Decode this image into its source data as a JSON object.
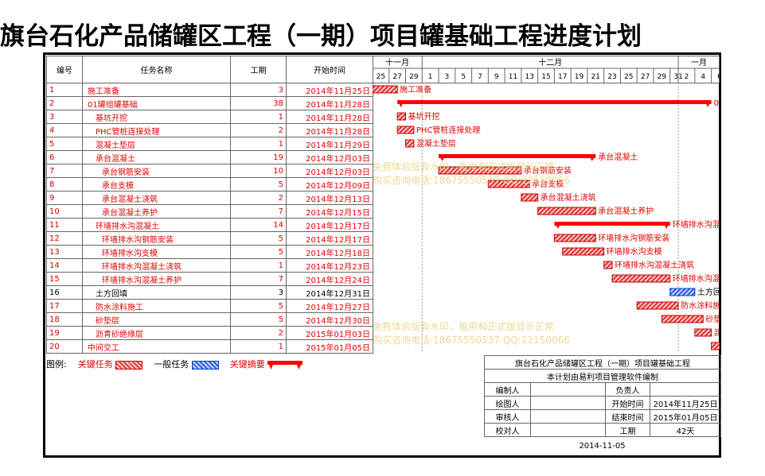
{
  "title": "旗台石化产品储罐区工程（一期）项目罐基础工程进度计划",
  "table": {
    "headers": {
      "id": "编号",
      "name": "任务名称",
      "duration": "工期",
      "start": "开始时间"
    },
    "rows": [
      {
        "id": "1",
        "name": "施工准备",
        "indent": 0,
        "duration": "3",
        "start": "2014年11月25日",
        "s": 0,
        "d": 3,
        "type": "critical",
        "label": "施工准备"
      },
      {
        "id": "2",
        "name": "01罐组罐基础",
        "indent": 0,
        "duration": "38",
        "start": "2014年11月28日",
        "s": 3,
        "d": 38,
        "type": "summary",
        "label": "01罐组罐基础"
      },
      {
        "id": "3",
        "name": "基坑开挖",
        "indent": 1,
        "duration": "1",
        "start": "2014年11月28日",
        "s": 3,
        "d": 1,
        "type": "critical",
        "label": "基坑开挖"
      },
      {
        "id": "4",
        "name": "PHC管桩连接处理",
        "indent": 1,
        "duration": "2",
        "start": "2014年11月28日",
        "s": 3,
        "d": 2,
        "type": "critical",
        "label": "PHC管桩连接处理"
      },
      {
        "id": "5",
        "name": "混凝土垫层",
        "indent": 1,
        "duration": "1",
        "start": "2014年11月29日",
        "s": 4,
        "d": 1,
        "type": "critical",
        "label": "混凝土垫层"
      },
      {
        "id": "6",
        "name": "承台混凝土",
        "indent": 1,
        "duration": "19",
        "start": "2014年12月03日",
        "s": 8,
        "d": 19,
        "type": "summary",
        "label": "承台混凝土"
      },
      {
        "id": "7",
        "name": "承台钢筋安装",
        "indent": 2,
        "duration": "10",
        "start": "2014年12月03日",
        "s": 8,
        "d": 10,
        "type": "critical",
        "label": "承台钢筋安装"
      },
      {
        "id": "8",
        "name": "承台支模",
        "indent": 2,
        "duration": "5",
        "start": "2014年12月09日",
        "s": 14,
        "d": 5,
        "type": "critical",
        "label": "承台支模"
      },
      {
        "id": "9",
        "name": "承台混凝土浇筑",
        "indent": 2,
        "duration": "2",
        "start": "2014年12月13日",
        "s": 18,
        "d": 2,
        "type": "critical",
        "label": "承台混凝土浇筑"
      },
      {
        "id": "10",
        "name": "承台混凝土养护",
        "indent": 2,
        "duration": "7",
        "start": "2014年12月15日",
        "s": 20,
        "d": 7,
        "type": "critical",
        "label": "承台混凝土养护"
      },
      {
        "id": "11",
        "name": "环墙排水沟混凝土",
        "indent": 1,
        "duration": "14",
        "start": "2014年12月17日",
        "s": 22,
        "d": 14,
        "type": "summary",
        "label": "环墙排水沟混凝土"
      },
      {
        "id": "12",
        "name": "环墙排水沟钢筋安装",
        "indent": 2,
        "duration": "5",
        "start": "2014年12月17日",
        "s": 22,
        "d": 5,
        "type": "critical",
        "label": "环墙排水沟钢筋安装"
      },
      {
        "id": "13",
        "name": "环墙排水沟支模",
        "indent": 2,
        "duration": "5",
        "start": "2014年12月18日",
        "s": 23,
        "d": 5,
        "type": "critical",
        "label": "环墙排水沟支模"
      },
      {
        "id": "14",
        "name": "环墙排水沟混凝土浇筑",
        "indent": 2,
        "duration": "1",
        "start": "2014年12月23日",
        "s": 28,
        "d": 1,
        "type": "critical",
        "label": "环墙排水沟混凝土浇筑"
      },
      {
        "id": "15",
        "name": "环墙排水沟混凝土养护",
        "indent": 2,
        "duration": "7",
        "start": "2014年12月24日",
        "s": 29,
        "d": 7,
        "type": "critical",
        "label": "环墙排水沟混凝土养护"
      },
      {
        "id": "16",
        "name": "土方回填",
        "indent": 1,
        "duration": "3",
        "start": "2014年12月31日",
        "s": 36,
        "d": 3,
        "type": "normal",
        "label": "土方回填"
      },
      {
        "id": "17",
        "name": "防水涂料施工",
        "indent": 1,
        "duration": "5",
        "start": "2014年12月27日",
        "s": 32,
        "d": 5,
        "type": "critical",
        "label": "防水涂料施工"
      },
      {
        "id": "18",
        "name": "砂垫层",
        "indent": 1,
        "duration": "5",
        "start": "2014年12月30日",
        "s": 35,
        "d": 5,
        "type": "critical",
        "label": "砂垫层"
      },
      {
        "id": "19",
        "name": "沥青砂绝缘层",
        "indent": 1,
        "duration": "2",
        "start": "2015年01月03日",
        "s": 39,
        "d": 2,
        "type": "critical",
        "label": "沥青砂绝缘层"
      },
      {
        "id": "20",
        "name": "中间交工",
        "indent": 0,
        "duration": "1",
        "start": "2015年01月05日",
        "s": 41,
        "d": 1,
        "type": "critical",
        "label": "中间交工"
      }
    ]
  },
  "gantt": {
    "months": [
      {
        "label": "十一月",
        "startDay": 0,
        "days": 6
      },
      {
        "label": "十二月",
        "startDay": 6,
        "days": 31
      },
      {
        "label": "一月",
        "startDay": 37,
        "days": 5
      }
    ],
    "total_days": 42,
    "day_labels": [
      "25",
      "27",
      "29",
      "1",
      "3",
      "5",
      "7",
      "9",
      "11",
      "13",
      "15",
      "17",
      "19",
      "21",
      "23",
      "25",
      "27",
      "29",
      "31",
      "2",
      "4",
      "6",
      "8",
      "10",
      "12",
      "14"
    ],
    "day_label_start": 0,
    "day_label_step": 2,
    "colors": {
      "critical": "#e00000",
      "normal": "#1f4fd8",
      "summary": "#ff0000",
      "label": "#e00000",
      "normal_label": "#000000"
    }
  },
  "watermarks": [
    {
      "line1": "免费体验版有水印，租用和正式版显示正常",
      "line2": "购买咨询电话:18675550537 QQ:22150066"
    },
    {
      "line1": "免费体验版有水印，租用和正式版显示正常",
      "line2": "购买咨询电话:18675550537 QQ:22150066"
    }
  ],
  "legend": {
    "prefix": "图例:",
    "critical": "关键任务",
    "normal": "一般任务",
    "summary": "关键摘要"
  },
  "info": {
    "project_title": "旗台石化产品储罐区工程（一期）项目罐基础工程",
    "software_note": "本计划由易利项目管理软件编制",
    "compiler_label": "编制人",
    "responsible_label": "负责人",
    "drawer_label": "绘图人",
    "start_label": "开始时间",
    "start_value": "2014年11月25日",
    "reviewer_label": "审核人",
    "end_label": "结束时间",
    "end_value": "2015年01月05日",
    "checker_label": "校对人",
    "duration_label": "工期",
    "duration_value": "42天",
    "date": "2014-11-05"
  }
}
